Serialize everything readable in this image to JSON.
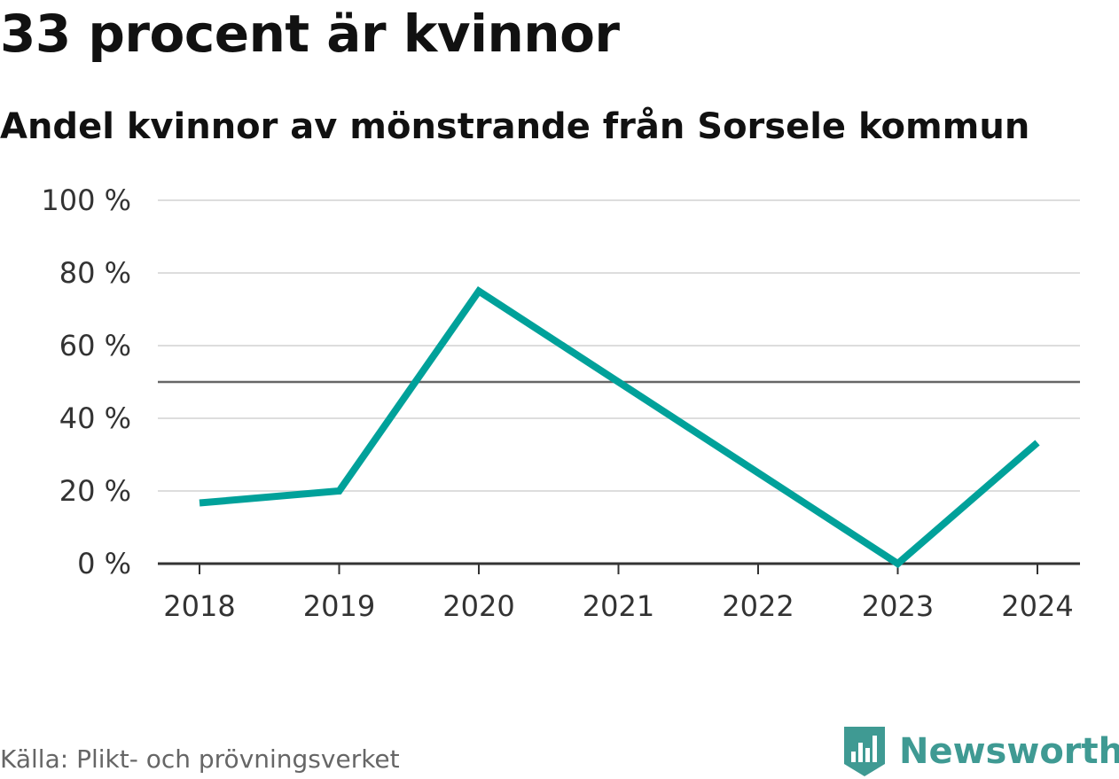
{
  "header": {
    "title": "33 procent är kvinnor",
    "subtitle": "Andel kvinnor av mönstrande från Sorsele kommun"
  },
  "footer": {
    "source": "Källa: Plikt- och prövningsverket",
    "brand": "Newsworthy"
  },
  "colors": {
    "line": "#00a19a",
    "reference_line": "#666666",
    "grid": "#dddddd",
    "axis": "#333333",
    "brand": "#3f9a93"
  },
  "chart_data": {
    "type": "line",
    "categories": [
      "2018",
      "2019",
      "2020",
      "2021",
      "2022",
      "2023",
      "2024"
    ],
    "series": [
      {
        "values": [
          16.7,
          20,
          75,
          50,
          25,
          0,
          33.3
        ]
      }
    ],
    "reference_line": 50,
    "ylim": [
      0,
      100
    ],
    "yticks": [
      0,
      20,
      40,
      60,
      80,
      100
    ],
    "ytick_labels": [
      "0 %",
      "20 %",
      "40 %",
      "60 %",
      "80 %",
      "100 %"
    ],
    "grid": true
  }
}
